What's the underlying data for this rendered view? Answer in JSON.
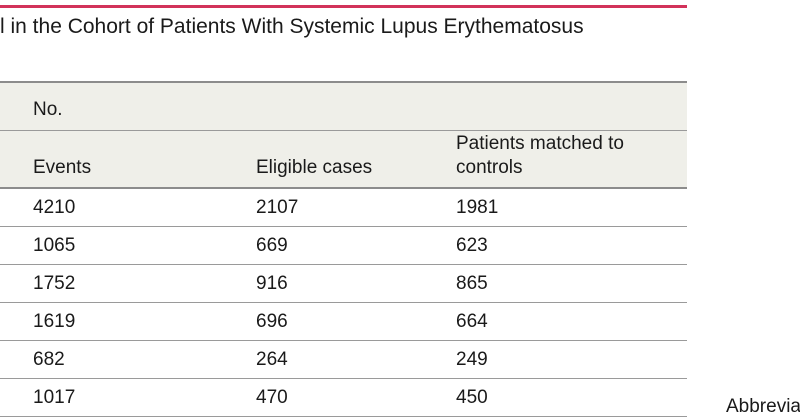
{
  "colors": {
    "accent_rule": "#d2325a",
    "header_bg": "#efefe9",
    "rule": "#8c8c8c"
  },
  "title": "l in the Cohort of Patients With Systemic Lupus Erythematosus",
  "table": {
    "group_header": "No.",
    "columns": [
      "Events",
      "Eligible cases",
      "Patients matched to controls"
    ],
    "rows": [
      [
        "4210",
        "2107",
        "1981"
      ],
      [
        "1065",
        "669",
        "623"
      ],
      [
        "1752",
        "916",
        "865"
      ],
      [
        "1619",
        "696",
        "664"
      ],
      [
        "682",
        "264",
        "249"
      ],
      [
        "1017",
        "470",
        "450"
      ]
    ]
  },
  "footnote_fragment": "Abbrevia"
}
